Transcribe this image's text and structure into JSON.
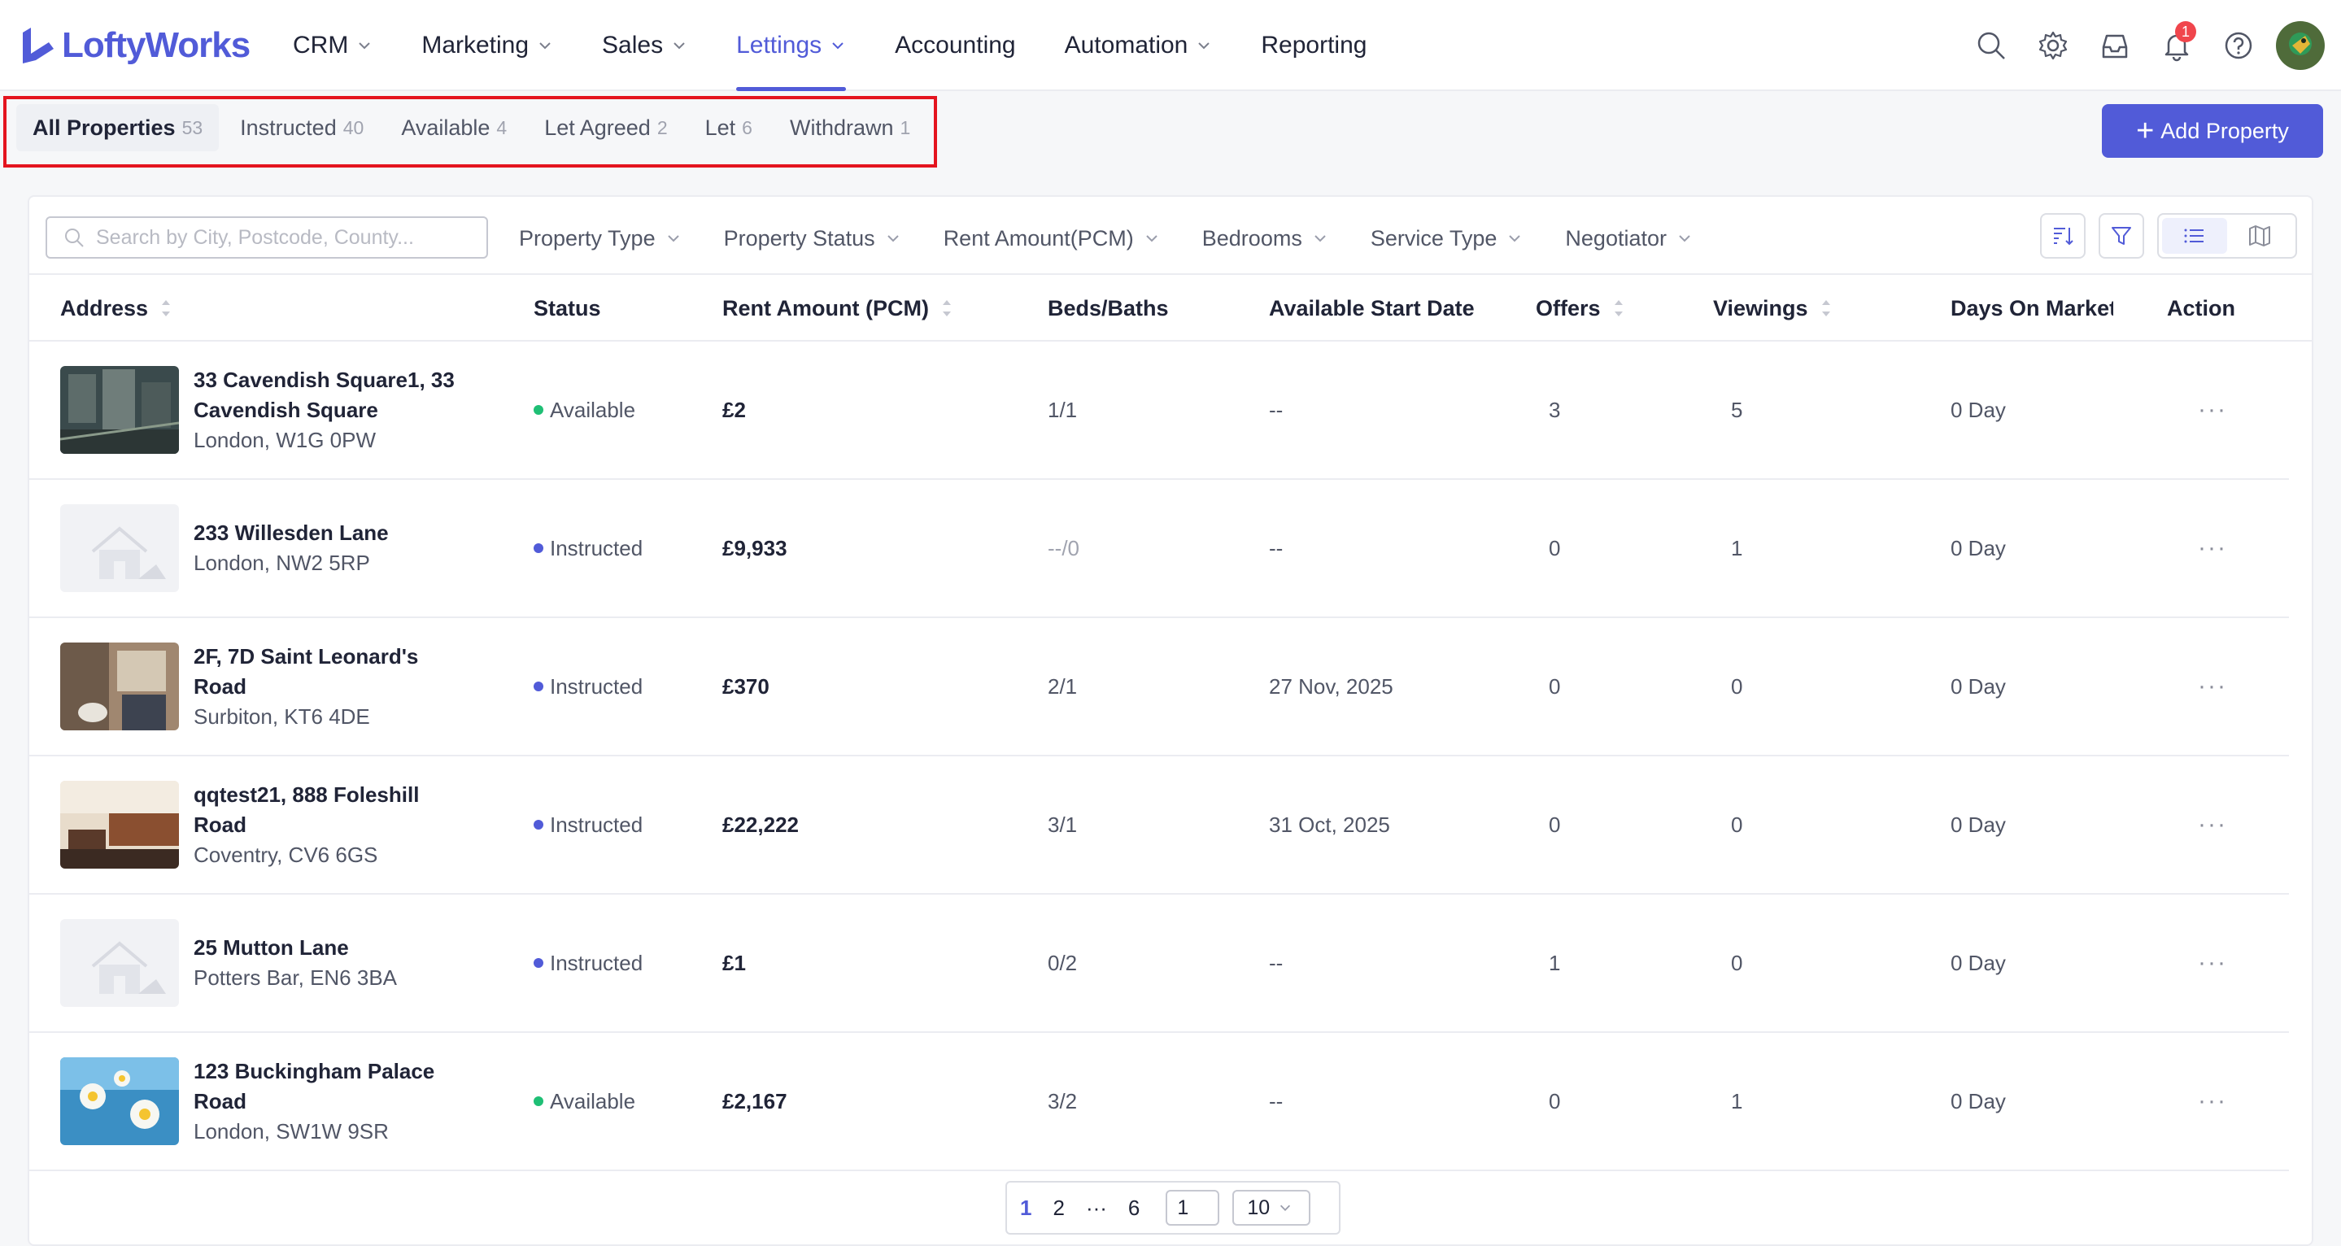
{
  "brand": {
    "name": "LoftyWorks",
    "accent": "#515bd8"
  },
  "nav": {
    "items": [
      {
        "label": "CRM",
        "has_dropdown": true
      },
      {
        "label": "Marketing",
        "has_dropdown": true
      },
      {
        "label": "Sales",
        "has_dropdown": true
      },
      {
        "label": "Lettings",
        "has_dropdown": true,
        "active": true
      },
      {
        "label": "Accounting",
        "has_dropdown": false
      },
      {
        "label": "Automation",
        "has_dropdown": true
      },
      {
        "label": "Reporting",
        "has_dropdown": false
      }
    ],
    "icons": [
      "search-icon",
      "gear-icon",
      "inbox-icon",
      "bell-icon",
      "help-icon"
    ],
    "notification_count": "1"
  },
  "tabs": [
    {
      "label": "All Properties",
      "count": "53",
      "active": true
    },
    {
      "label": "Instructed",
      "count": "40"
    },
    {
      "label": "Available",
      "count": "4"
    },
    {
      "label": "Let Agreed",
      "count": "2"
    },
    {
      "label": "Let",
      "count": "6"
    },
    {
      "label": "Withdrawn",
      "count": "1"
    }
  ],
  "add_property_label": "Add Property",
  "search": {
    "placeholder": "Search by City, Postcode, County...",
    "value": ""
  },
  "filters": [
    "Property Type",
    "Property Status",
    "Rent Amount(PCM)",
    "Bedrooms",
    "Service Type",
    "Negotiator"
  ],
  "columns": {
    "address": "Address",
    "status": "Status",
    "rent": "Rent Amount (PCM)",
    "beds": "Beds/Baths",
    "start": "Available Start Date",
    "offers": "Offers",
    "viewings": "Viewings",
    "days": "Days On Market",
    "action": "Action"
  },
  "status_colors": {
    "Available": "#1fbf75",
    "Instructed": "#515bd8"
  },
  "rows": [
    {
      "line1a": "33 Cavendish Square1, 33",
      "line1b": "Cavendish Square",
      "line2": "London, W1G 0PW",
      "status": "Available",
      "rent": "£2",
      "beds": "1/1",
      "start": "--",
      "offers": "3",
      "viewings": "5",
      "days": "0 Day",
      "action": "···",
      "thumb": "city"
    },
    {
      "line1a": "233 Willesden Lane",
      "line1b": "",
      "line2": "London, NW2 5RP",
      "status": "Instructed",
      "rent": "£9,933",
      "beds": "--/0",
      "start": "--",
      "offers": "0",
      "viewings": "1",
      "days": "0 Day",
      "action": "···",
      "thumb": "placeholder"
    },
    {
      "line1a": "2F, 7D Saint Leonard's",
      "line1b": "Road",
      "line2": "Surbiton, KT6 4DE",
      "status": "Instructed",
      "rent": "£370",
      "beds": "2/1",
      "start": "27 Nov, 2025",
      "offers": "0",
      "viewings": "0",
      "days": "0 Day",
      "action": "···",
      "thumb": "bathroom"
    },
    {
      "line1a": "qqtest21, 888 Foleshill",
      "line1b": "Road",
      "line2": "Coventry, CV6 6GS",
      "status": "Instructed",
      "rent": "£22,222",
      "beds": "3/1",
      "start": "31 Oct, 2025",
      "offers": "0",
      "viewings": "0",
      "days": "0 Day",
      "action": "···",
      "thumb": "kitchen"
    },
    {
      "line1a": "25 Mutton Lane",
      "line1b": "",
      "line2": "Potters Bar, EN6 3BA",
      "status": "Instructed",
      "rent": "£1",
      "beds": "0/2",
      "start": "--",
      "offers": "1",
      "viewings": "0",
      "days": "0 Day",
      "action": "···",
      "thumb": "placeholder"
    },
    {
      "line1a": "123 Buckingham Palace",
      "line1b": "Road",
      "line2": "London, SW1W 9SR",
      "status": "Available",
      "rent": "£2,167",
      "beds": "3/2",
      "start": "--",
      "offers": "0",
      "viewings": "1",
      "days": "0 Day",
      "action": "···",
      "thumb": "flowers"
    }
  ],
  "pagination": {
    "pages": [
      "1",
      "2",
      "···",
      "6"
    ],
    "current": "1",
    "goto_value": "1",
    "page_size": "10"
  }
}
